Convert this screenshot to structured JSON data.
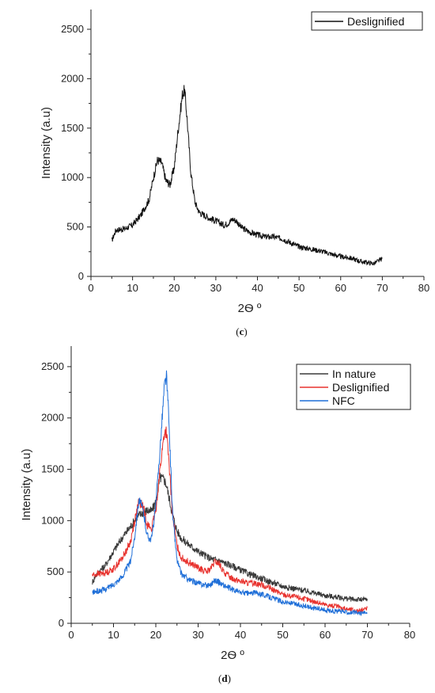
{
  "chart_data": [
    {
      "panel": "c",
      "caption": "c",
      "type": "line",
      "xlabel": "2Ѳ º",
      "ylabel": "Intensity (a.u)",
      "xlim": [
        0,
        80
      ],
      "ylim": [
        0,
        2700
      ],
      "xticks": [
        0,
        10,
        20,
        30,
        40,
        50,
        60,
        70,
        80
      ],
      "yticks": [
        0,
        500,
        1000,
        1500,
        2000,
        2500
      ],
      "grid": false,
      "legend": "top-right",
      "series": [
        {
          "name": "Deslignified",
          "color": "#111111",
          "x": [
            5,
            6,
            8,
            10,
            12,
            14,
            15,
            16,
            17,
            18,
            19,
            20,
            21,
            22,
            22.5,
            23,
            24,
            25,
            26,
            28,
            30,
            32,
            33,
            34,
            35,
            36,
            38,
            40,
            42,
            44,
            46,
            48,
            50,
            55,
            60,
            62,
            65,
            68,
            70
          ],
          "y": [
            360,
            470,
            480,
            520,
            620,
            780,
            1000,
            1180,
            1150,
            970,
            930,
            1100,
            1500,
            1850,
            1880,
            1650,
            1050,
            750,
            650,
            600,
            560,
            520,
            540,
            580,
            560,
            500,
            450,
            420,
            400,
            400,
            380,
            340,
            300,
            260,
            200,
            190,
            150,
            130,
            180
          ]
        }
      ]
    },
    {
      "panel": "d",
      "caption": "d",
      "type": "line",
      "xlabel": "2Ѳ º",
      "ylabel": "Intensity (a.u)",
      "xlim": [
        0,
        80
      ],
      "ylim": [
        0,
        2700
      ],
      "xticks": [
        0,
        10,
        20,
        30,
        40,
        50,
        60,
        70,
        80
      ],
      "yticks": [
        0,
        500,
        1000,
        1500,
        2000,
        2500
      ],
      "grid": false,
      "legend": "top-right",
      "series": [
        {
          "name": "In nature",
          "color": "#3a3a3a",
          "x": [
            5,
            6,
            8,
            10,
            12,
            14,
            15,
            16,
            17,
            18,
            19,
            20,
            21,
            22,
            22.5,
            23,
            24,
            25,
            26,
            28,
            30,
            32,
            33,
            34,
            35,
            36,
            38,
            40,
            42,
            44,
            46,
            48,
            50,
            55,
            60,
            62,
            65,
            68,
            70
          ],
          "y": [
            400,
            480,
            560,
            700,
            830,
            940,
            1000,
            1050,
            1080,
            1100,
            1090,
            1180,
            1420,
            1400,
            1350,
            1250,
            1050,
            900,
            830,
            760,
            700,
            650,
            630,
            620,
            610,
            590,
            560,
            520,
            480,
            450,
            420,
            390,
            360,
            320,
            270,
            260,
            240,
            230,
            230
          ]
        },
        {
          "name": "Deslignified",
          "color": "#e8322e",
          "x": [
            5,
            6,
            8,
            10,
            12,
            14,
            15,
            16,
            17,
            18,
            19,
            20,
            21,
            22,
            22.5,
            23,
            24,
            25,
            26,
            28,
            30,
            32,
            33,
            34,
            35,
            36,
            38,
            40,
            42,
            44,
            46,
            48,
            50,
            55,
            60,
            62,
            65,
            68,
            70
          ],
          "y": [
            470,
            480,
            490,
            530,
            630,
            790,
            1000,
            1180,
            1140,
            960,
            920,
            1100,
            1500,
            1850,
            1870,
            1620,
            1040,
            760,
            640,
            590,
            540,
            500,
            530,
            600,
            580,
            500,
            440,
            410,
            390,
            390,
            360,
            320,
            280,
            240,
            180,
            170,
            140,
            120,
            150
          ]
        },
        {
          "name": "NFC",
          "color": "#1f6fd8",
          "x": [
            5,
            6,
            8,
            10,
            12,
            14,
            15,
            16,
            17,
            18,
            19,
            20,
            21,
            22,
            22.5,
            23,
            24,
            25,
            26,
            28,
            30,
            32,
            33,
            34,
            35,
            36,
            38,
            40,
            42,
            44,
            46,
            48,
            50,
            55,
            60,
            62,
            65,
            68,
            70
          ],
          "y": [
            300,
            310,
            330,
            380,
            450,
            600,
            850,
            1210,
            1100,
            850,
            820,
            1150,
            1700,
            2300,
            2420,
            2050,
            1050,
            620,
            480,
            420,
            390,
            370,
            380,
            420,
            400,
            370,
            330,
            300,
            290,
            300,
            270,
            240,
            210,
            170,
            130,
            120,
            110,
            100,
            100
          ]
        }
      ]
    }
  ]
}
